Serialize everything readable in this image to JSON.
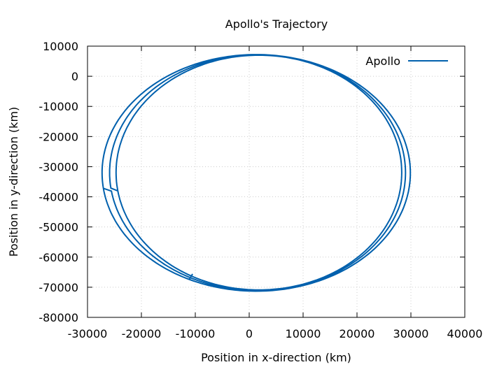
{
  "chart_data": {
    "type": "line",
    "title": "Apollo's Trajectory",
    "xlabel": "Position in x-direction (km)",
    "ylabel": "Position in y-direction (km)",
    "xlim": [
      -30000,
      40000
    ],
    "ylim": [
      -80000,
      10000
    ],
    "x_ticks": [
      -30000,
      -20000,
      -10000,
      0,
      10000,
      20000,
      30000,
      40000
    ],
    "y_ticks": [
      10000,
      0,
      -10000,
      -20000,
      -30000,
      -40000,
      -50000,
      -60000,
      -70000,
      -80000
    ],
    "grid": true,
    "legend_position": "top-right",
    "series": [
      {
        "name": "Apollo",
        "color": "#0060ad",
        "orbits": [
          {
            "x_min": -24700,
            "x_max": 28300,
            "y_min": -70900,
            "y_max": 7000
          },
          {
            "x_min": -25900,
            "x_max": 29000,
            "y_min": -71100,
            "y_max": 7100
          },
          {
            "x_min": -27300,
            "x_max": 29900,
            "y_min": -71300,
            "y_max": 7200
          }
        ],
        "end_point": {
          "x": -10500,
          "y": -65600
        }
      }
    ]
  }
}
